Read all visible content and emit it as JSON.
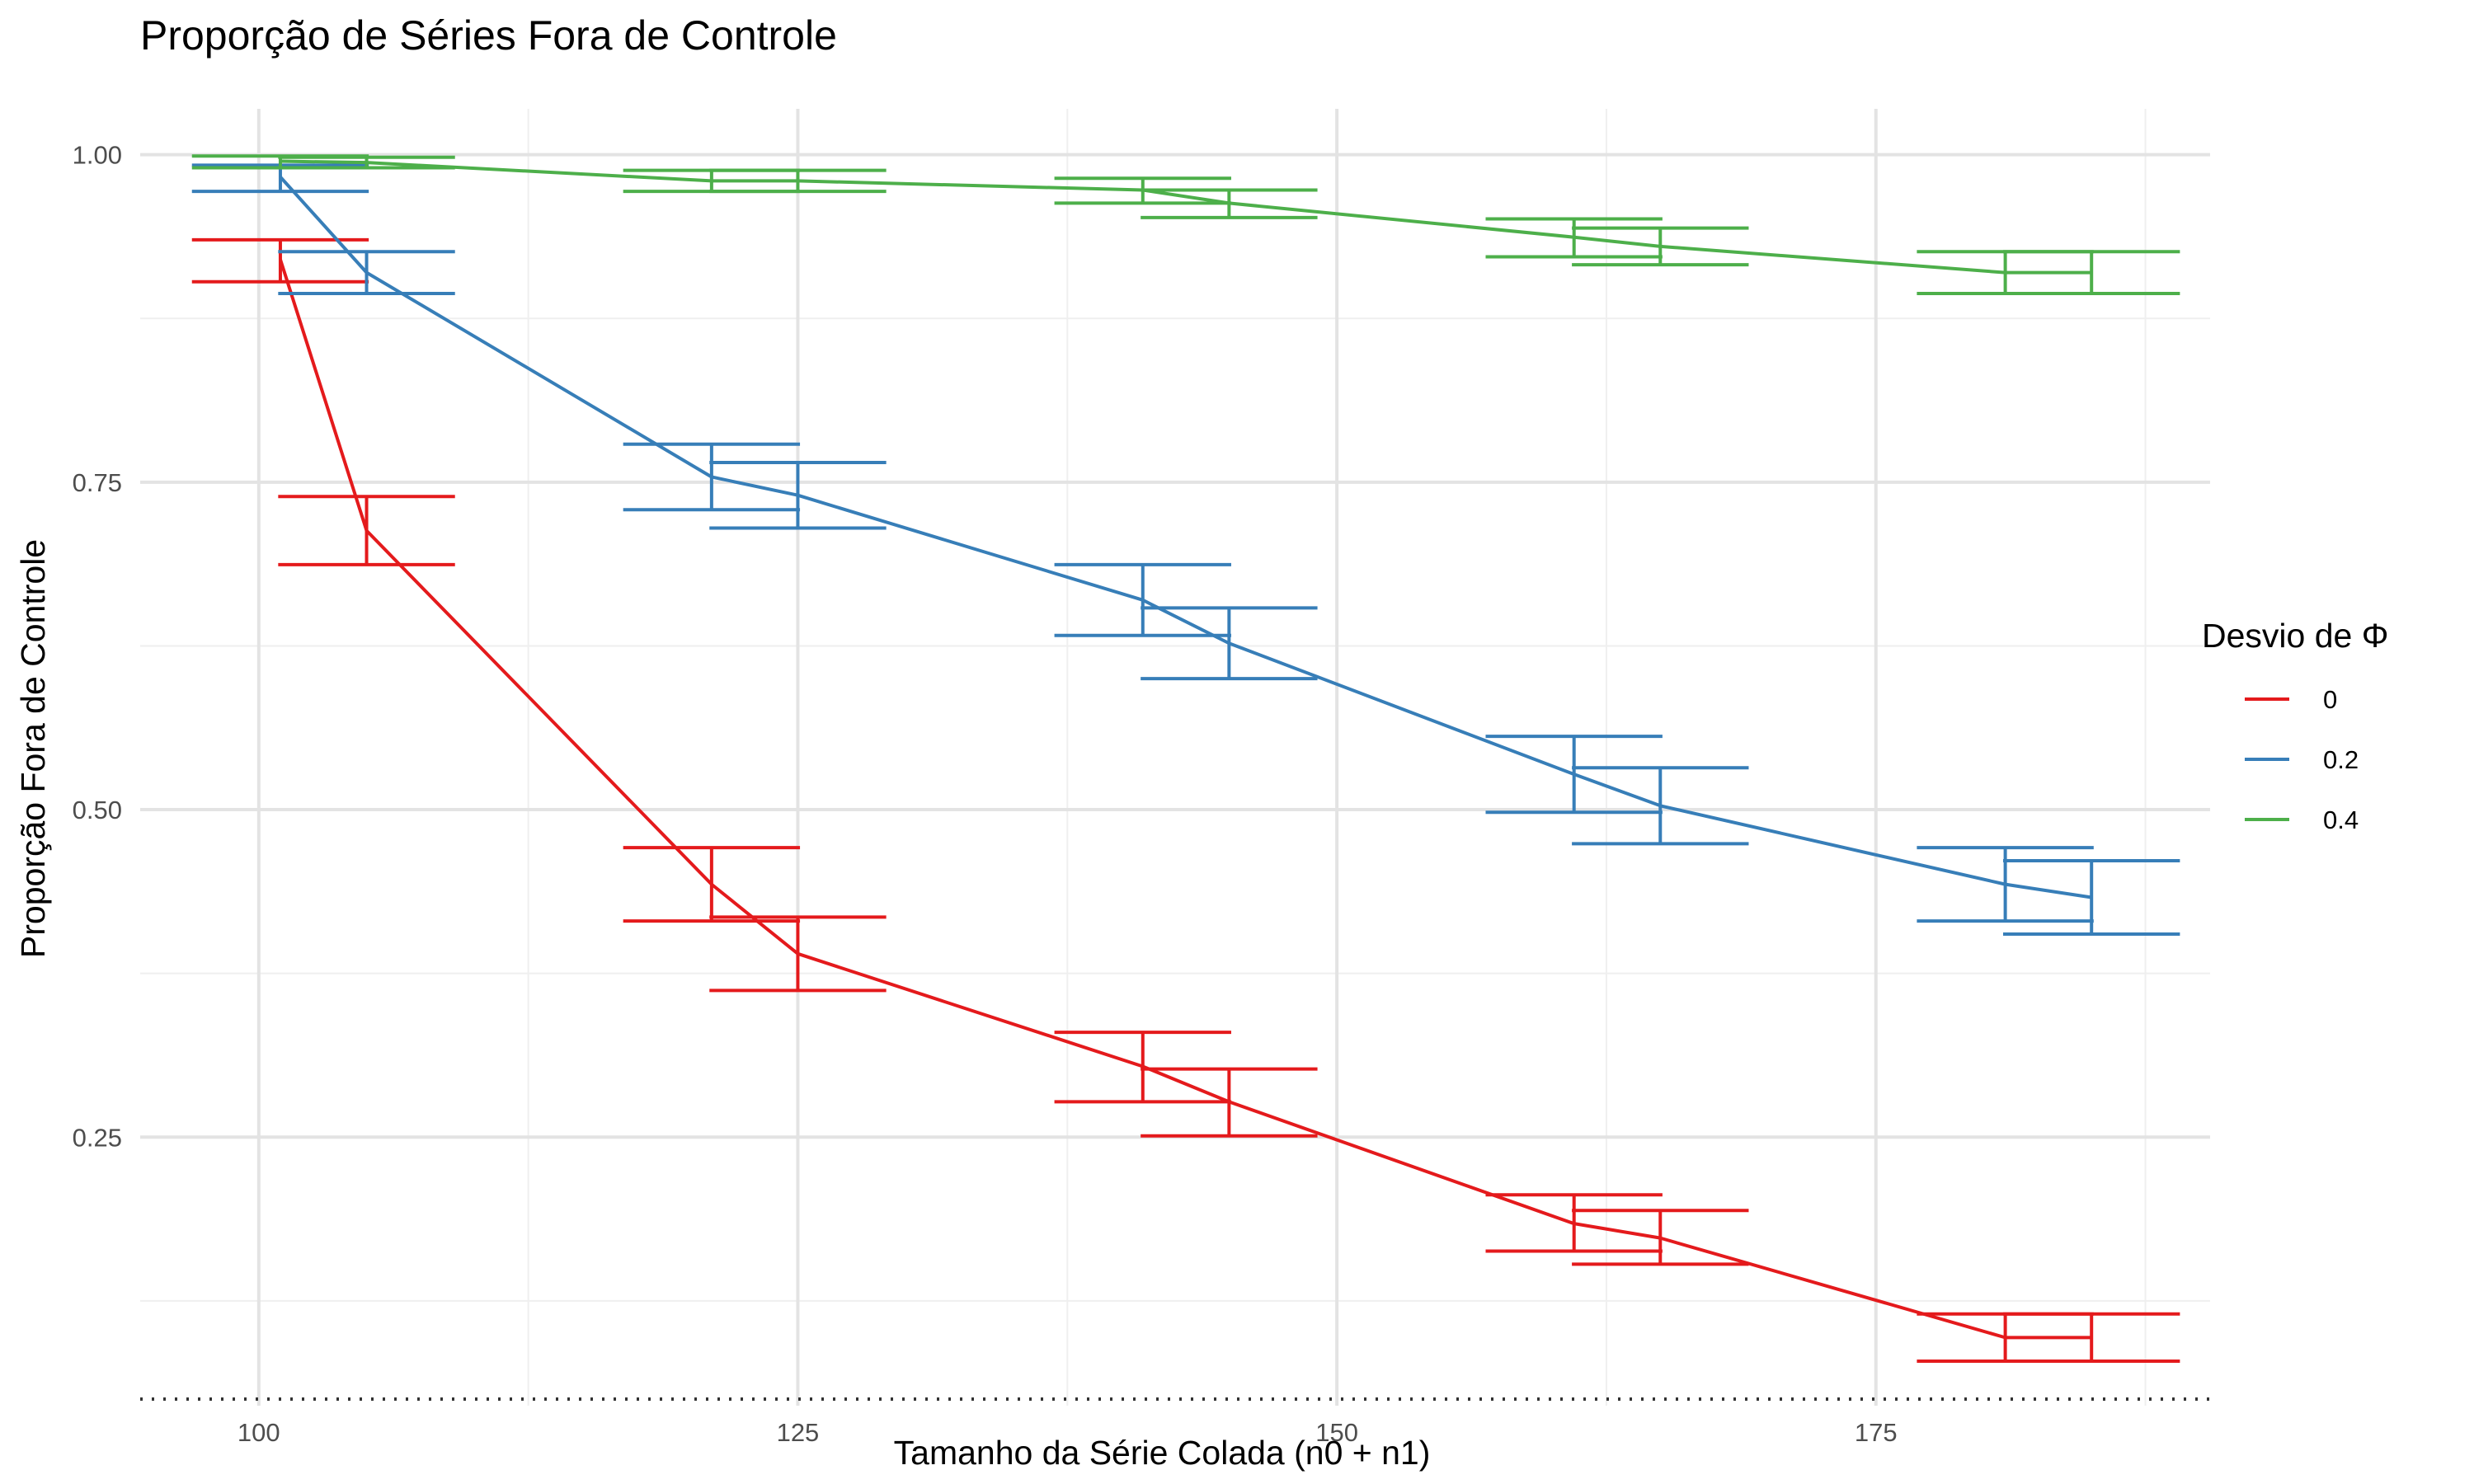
{
  "chart_data": {
    "type": "line",
    "title": "Proporção de Séries Fora de Controle",
    "xlabel": "Tamanho da Série Colada (n0 + n1)",
    "ylabel": "Proporção Fora de Controle",
    "xlim": [
      94.5,
      190.5
    ],
    "ylim": [
      0.045,
      1.035
    ],
    "x_ticks": [
      100,
      125,
      150,
      175
    ],
    "x_tick_labels": [
      "100",
      "125",
      "150",
      "175"
    ],
    "y_ticks": [
      0.25,
      0.5,
      0.75,
      1.0
    ],
    "y_tick_labels": [
      "0.25",
      "0.50",
      "0.75",
      "1.00"
    ],
    "x_minor": [
      112.5,
      137.5,
      162.5,
      187.5
    ],
    "y_minor": [
      0.125,
      0.375,
      0.625,
      0.875
    ],
    "grid": true,
    "reference_line": {
      "y": 0.05,
      "style": "dotted",
      "color": "#333333"
    },
    "x": [
      101,
      105,
      121,
      125,
      141,
      145,
      161,
      165,
      181,
      185
    ],
    "legend": {
      "title": "Desvio de Φ",
      "placement": "right"
    },
    "series": [
      {
        "name": "0",
        "color": "#e41a1c",
        "values": [
          0.92,
          0.713,
          0.443,
          0.39,
          0.304,
          0.277,
          0.184,
          0.173,
          0.097,
          0.097
        ],
        "lower": [
          0.903,
          0.687,
          0.415,
          0.362,
          0.277,
          0.251,
          0.163,
          0.153,
          0.079,
          0.079
        ],
        "upper": [
          0.935,
          0.739,
          0.471,
          0.418,
          0.33,
          0.302,
          0.206,
          0.194,
          0.115,
          0.115
        ]
      },
      {
        "name": "0.2",
        "color": "#377eb8",
        "values": [
          0.983,
          0.91,
          0.754,
          0.74,
          0.66,
          0.627,
          0.527,
          0.503,
          0.443,
          0.433
        ],
        "lower": [
          0.972,
          0.894,
          0.729,
          0.715,
          0.633,
          0.6,
          0.498,
          0.474,
          0.415,
          0.405
        ],
        "upper": [
          0.992,
          0.926,
          0.779,
          0.765,
          0.687,
          0.654,
          0.556,
          0.532,
          0.471,
          0.461
        ]
      },
      {
        "name": "0.4",
        "color": "#4daf4a",
        "values": [
          0.995,
          0.994,
          0.98,
          0.98,
          0.973,
          0.963,
          0.937,
          0.93,
          0.91,
          0.91
        ],
        "lower": [
          0.99,
          0.99,
          0.972,
          0.972,
          0.963,
          0.952,
          0.922,
          0.916,
          0.894,
          0.894
        ],
        "upper": [
          0.999,
          0.998,
          0.988,
          0.988,
          0.982,
          0.973,
          0.951,
          0.944,
          0.926,
          0.926
        ]
      }
    ]
  }
}
